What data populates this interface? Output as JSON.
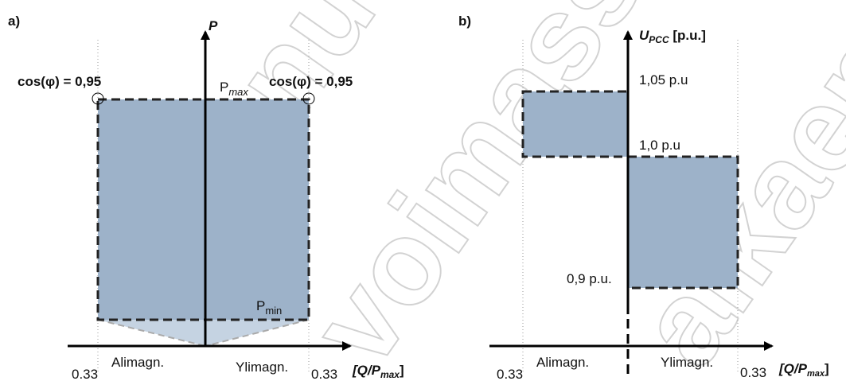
{
  "panel_a": {
    "label": "a)",
    "y_axis": "P",
    "cos_left": "cos(φ) = 0,95",
    "cos_right": "cos(φ) = 0,95",
    "p_max": {
      "base": "P",
      "sub": "max"
    },
    "p_min": {
      "base": "P",
      "sub": "min"
    },
    "left_region": "Alimagn.",
    "right_region": "Ylimagn.",
    "left_limit": "0.33",
    "right_limit": "0.33",
    "x_axis": {
      "open": "[Q/P",
      "sub": "max",
      "close": "]"
    }
  },
  "panel_b": {
    "label": "b)",
    "y_axis": {
      "base": "U",
      "sub": "PCC",
      "unit": " [p.u.]"
    },
    "upper": "1,05 p.u",
    "middle": "1,0 p.u",
    "lower": "0,9 p.u.",
    "left_region": "Alimagn.",
    "right_region": "Ylimagn.",
    "left_limit": "0.33",
    "right_limit": "0.33",
    "x_axis": {
      "open": "[Q/P",
      "sub": "max",
      "close": "]"
    }
  },
  "watermark": [
    "entunut.",
    "voimassa",
    "alkaen"
  ]
}
